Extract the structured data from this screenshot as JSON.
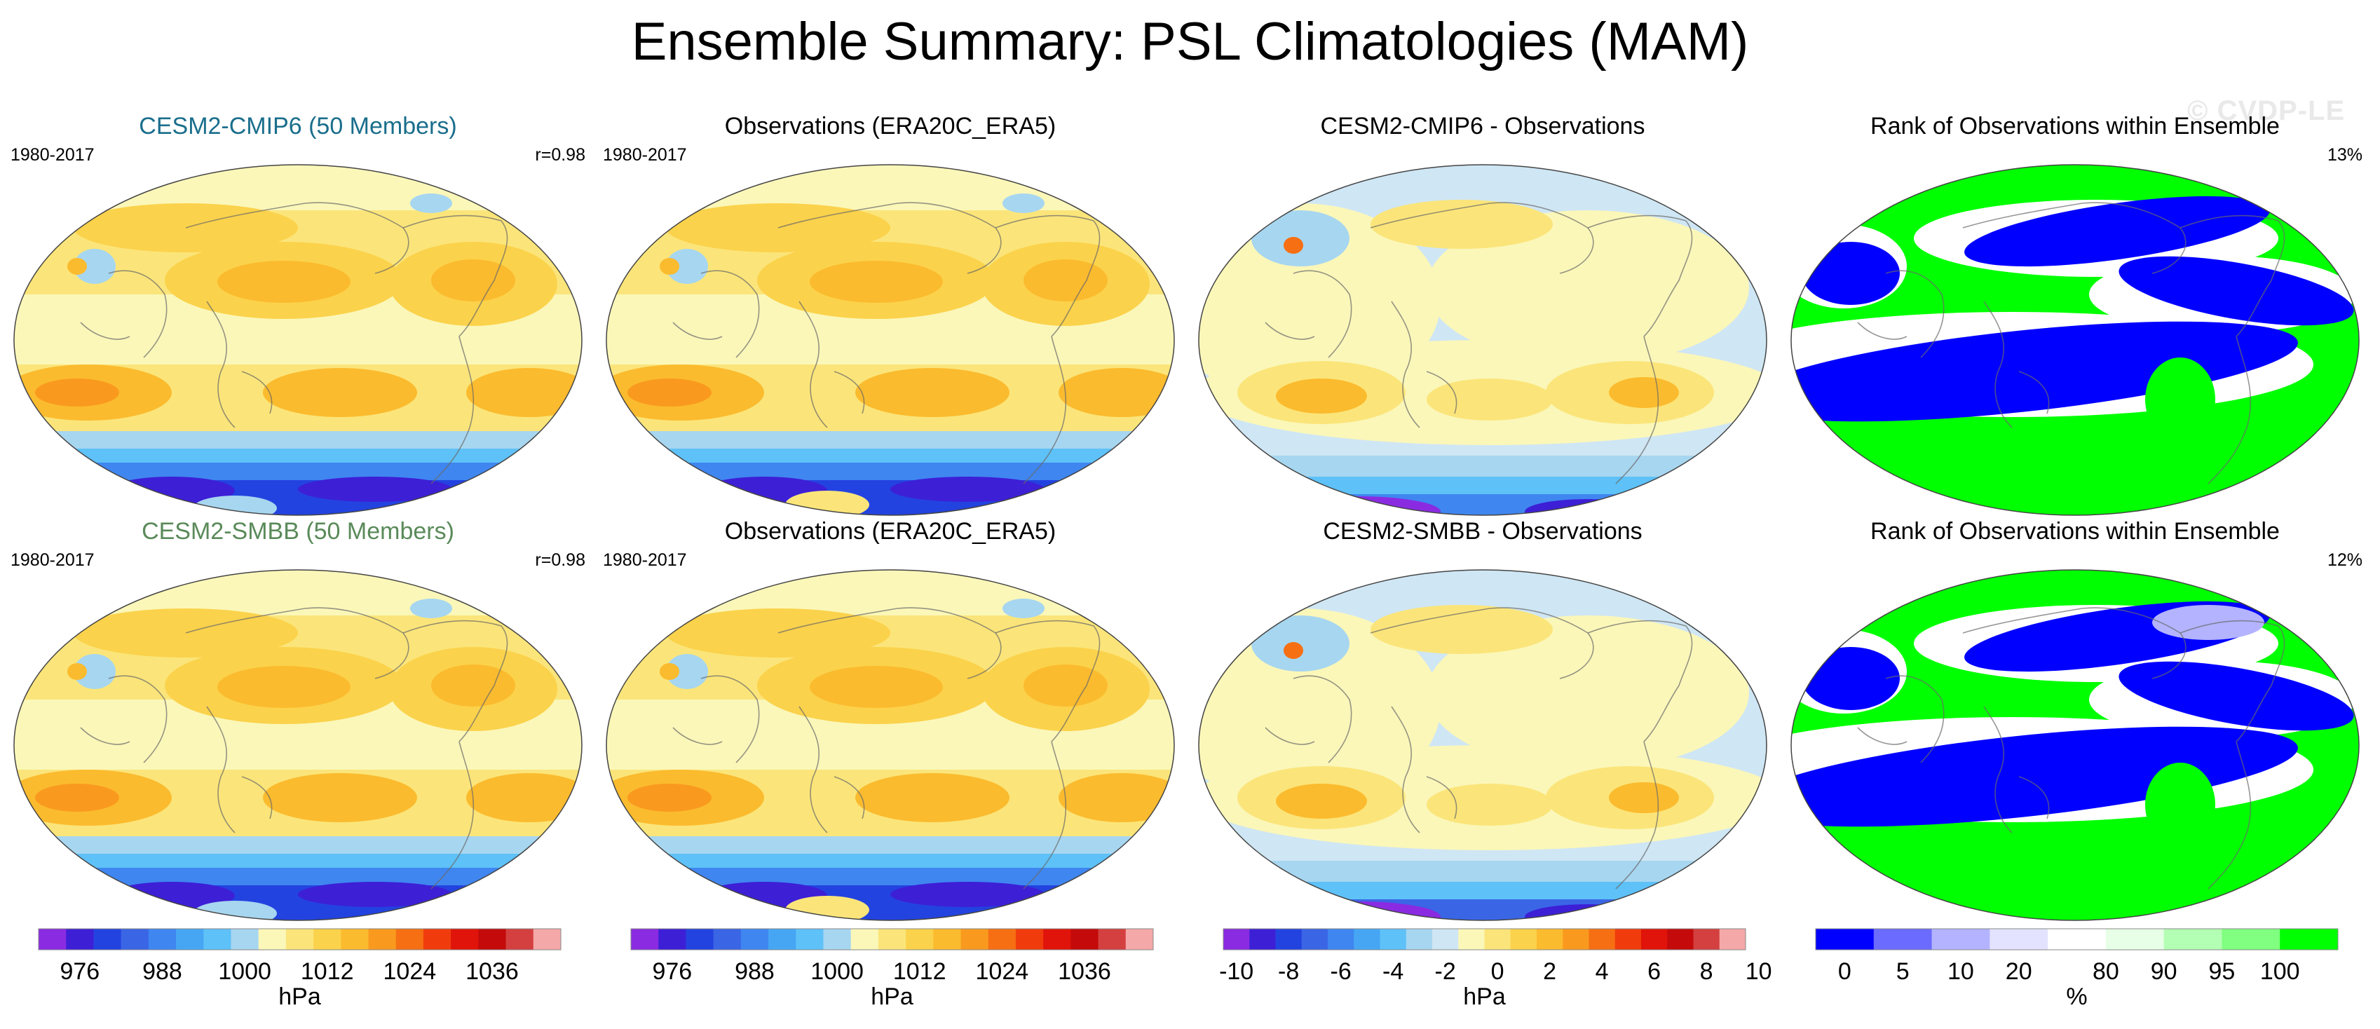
{
  "title": "Ensemble Summary: PSL Climatologies (MAM)",
  "watermark": "© CVDP-LE",
  "panels": [
    {
      "title": "CESM2-CMIP6 (50 Members)",
      "title_color": "#1a6e8c",
      "left": "1980-2017",
      "right": "r=0.98",
      "kind": "psl"
    },
    {
      "title": "Observations (ERA20C_ERA5)",
      "title_color": "#000000",
      "left": "1980-2017",
      "right": "",
      "kind": "psl_obs"
    },
    {
      "title": "CESM2-CMIP6 - Observations",
      "title_color": "#000000",
      "left": "",
      "right": "",
      "kind": "diff"
    },
    {
      "title": "Rank of Observations within Ensemble",
      "title_color": "#000000",
      "left": "",
      "right": "13%",
      "kind": "rank"
    },
    {
      "title": "CESM2-SMBB (50 Members)",
      "title_color": "#5a8a5a",
      "left": "1980-2017",
      "right": "r=0.98",
      "kind": "psl"
    },
    {
      "title": "Observations (ERA20C_ERA5)",
      "title_color": "#000000",
      "left": "1980-2017",
      "right": "",
      "kind": "psl_obs"
    },
    {
      "title": "CESM2-SMBB - Observations",
      "title_color": "#000000",
      "left": "",
      "right": "",
      "kind": "diff"
    },
    {
      "title": "Rank of Observations within Ensemble",
      "title_color": "#000000",
      "left": "",
      "right": "12%",
      "kind": "rank"
    }
  ],
  "colorbars": [
    {
      "label": "hPa",
      "ticks": [
        "976",
        "988",
        "1000",
        "1012",
        "1024",
        "1036"
      ],
      "colors": [
        "#8a2be2",
        "#3d1fd6",
        "#2343e0",
        "#3a66e6",
        "#3f86f0",
        "#46a6f4",
        "#5ec1f8",
        "#a7d6f0",
        "#fbf7b9",
        "#fbe57a",
        "#fbd24b",
        "#fbbb2e",
        "#f99a1f",
        "#f66f13",
        "#f03c0d",
        "#e0140a",
        "#c40a0a",
        "#d44040",
        "#f5a8a8"
      ]
    },
    {
      "label": "hPa",
      "ticks": [
        "976",
        "988",
        "1000",
        "1012",
        "1024",
        "1036"
      ],
      "colors": [
        "#8a2be2",
        "#3d1fd6",
        "#2343e0",
        "#3a66e6",
        "#3f86f0",
        "#46a6f4",
        "#5ec1f8",
        "#a7d6f0",
        "#fbf7b9",
        "#fbe57a",
        "#fbd24b",
        "#fbbb2e",
        "#f99a1f",
        "#f66f13",
        "#f03c0d",
        "#e0140a",
        "#c40a0a",
        "#d44040",
        "#f5a8a8"
      ]
    },
    {
      "label": "hPa",
      "ticks": [
        "-10",
        "-8",
        "-6",
        "-4",
        "-2",
        "0",
        "2",
        "4",
        "6",
        "8",
        "10"
      ],
      "colors": [
        "#8a2be2",
        "#3d1fd6",
        "#2343e0",
        "#3a66e6",
        "#3f86f0",
        "#46a6f4",
        "#5ec1f8",
        "#a7d6f0",
        "#cfe6f4",
        "#fbf7b9",
        "#fbe57a",
        "#fbd24b",
        "#fbbb2e",
        "#f99a1f",
        "#f66f13",
        "#f03c0d",
        "#e0140a",
        "#c40a0a",
        "#d44040",
        "#f5a8a8"
      ]
    },
    {
      "label": "%",
      "ticks": [
        "0",
        "5",
        "10",
        "20",
        "80",
        "90",
        "95",
        "100"
      ],
      "colors": [
        "#0000ff",
        "#6b6bff",
        "#b3b3ff",
        "#e3e3ff",
        "#ffffff",
        "#e6ffe6",
        "#b3ffb3",
        "#80ff80",
        "#00ff00"
      ]
    }
  ],
  "chart_data": [
    {
      "type": "heatmap",
      "title": "CESM2-CMIP6 (50 Members)",
      "period": "1980-2017",
      "pattern_correlation": 0.98,
      "variable": "PSL",
      "season": "MAM",
      "units": "hPa",
      "contour_levels": [
        972,
        976,
        980,
        984,
        988,
        992,
        996,
        1000,
        1004,
        1008,
        1012,
        1016,
        1020,
        1024,
        1028,
        1032,
        1036,
        1040
      ]
    },
    {
      "type": "heatmap",
      "title": "Observations (ERA20C_ERA5)",
      "period": "1980-2017",
      "variable": "PSL",
      "season": "MAM",
      "units": "hPa"
    },
    {
      "type": "heatmap",
      "title": "CESM2-CMIP6 - Observations",
      "variable": "PSL difference",
      "units": "hPa",
      "contour_levels": [
        -10,
        -9,
        -8,
        -7,
        -6,
        -5,
        -4,
        -3,
        -2,
        -1,
        0,
        1,
        2,
        3,
        4,
        5,
        6,
        7,
        8,
        9,
        10
      ]
    },
    {
      "type": "heatmap",
      "title": "Rank of Observations within Ensemble",
      "units": "%",
      "summary_value": "13%",
      "bins": [
        0,
        5,
        10,
        20,
        80,
        90,
        95,
        100
      ]
    },
    {
      "type": "heatmap",
      "title": "CESM2-SMBB (50 Members)",
      "period": "1980-2017",
      "pattern_correlation": 0.98,
      "variable": "PSL",
      "season": "MAM",
      "units": "hPa"
    },
    {
      "type": "heatmap",
      "title": "Observations (ERA20C_ERA5)",
      "period": "1980-2017",
      "variable": "PSL",
      "season": "MAM",
      "units": "hPa"
    },
    {
      "type": "heatmap",
      "title": "CESM2-SMBB - Observations",
      "variable": "PSL difference",
      "units": "hPa"
    },
    {
      "type": "heatmap",
      "title": "Rank of Observations within Ensemble",
      "units": "%",
      "summary_value": "12%",
      "bins": [
        0,
        5,
        10,
        20,
        80,
        90,
        95,
        100
      ]
    }
  ]
}
